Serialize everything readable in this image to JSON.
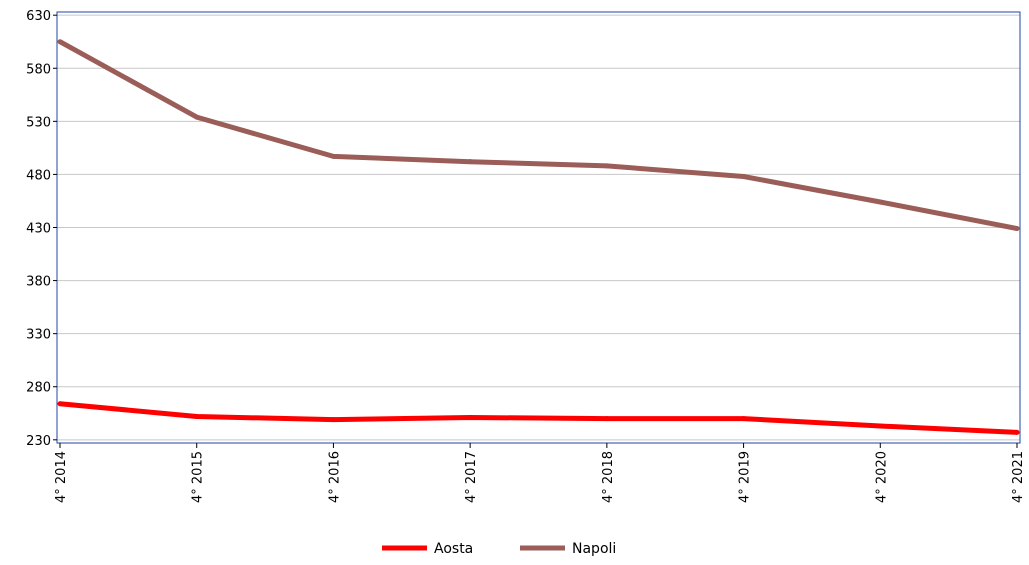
{
  "chart_data": {
    "type": "line",
    "title": "",
    "xlabel": "",
    "ylabel": "",
    "categories": [
      "4° 2014",
      "4° 2015",
      "4° 2016",
      "4° 2017",
      "4° 2018",
      "4° 2019",
      "4° 2020",
      "4° 2021"
    ],
    "y_ticks": [
      230,
      280,
      330,
      380,
      430,
      480,
      530,
      580,
      630
    ],
    "ylim": [
      227,
      633
    ],
    "grid": true,
    "legend_position": "bottom-center",
    "series": [
      {
        "name": "Aosta",
        "color": "#ff0000",
        "values": [
          264,
          252,
          249,
          251,
          250,
          250,
          243,
          237
        ]
      },
      {
        "name": "Napoli",
        "color": "#9b5d57",
        "values": [
          605,
          534,
          497,
          492,
          488,
          478,
          454,
          429
        ]
      }
    ]
  }
}
